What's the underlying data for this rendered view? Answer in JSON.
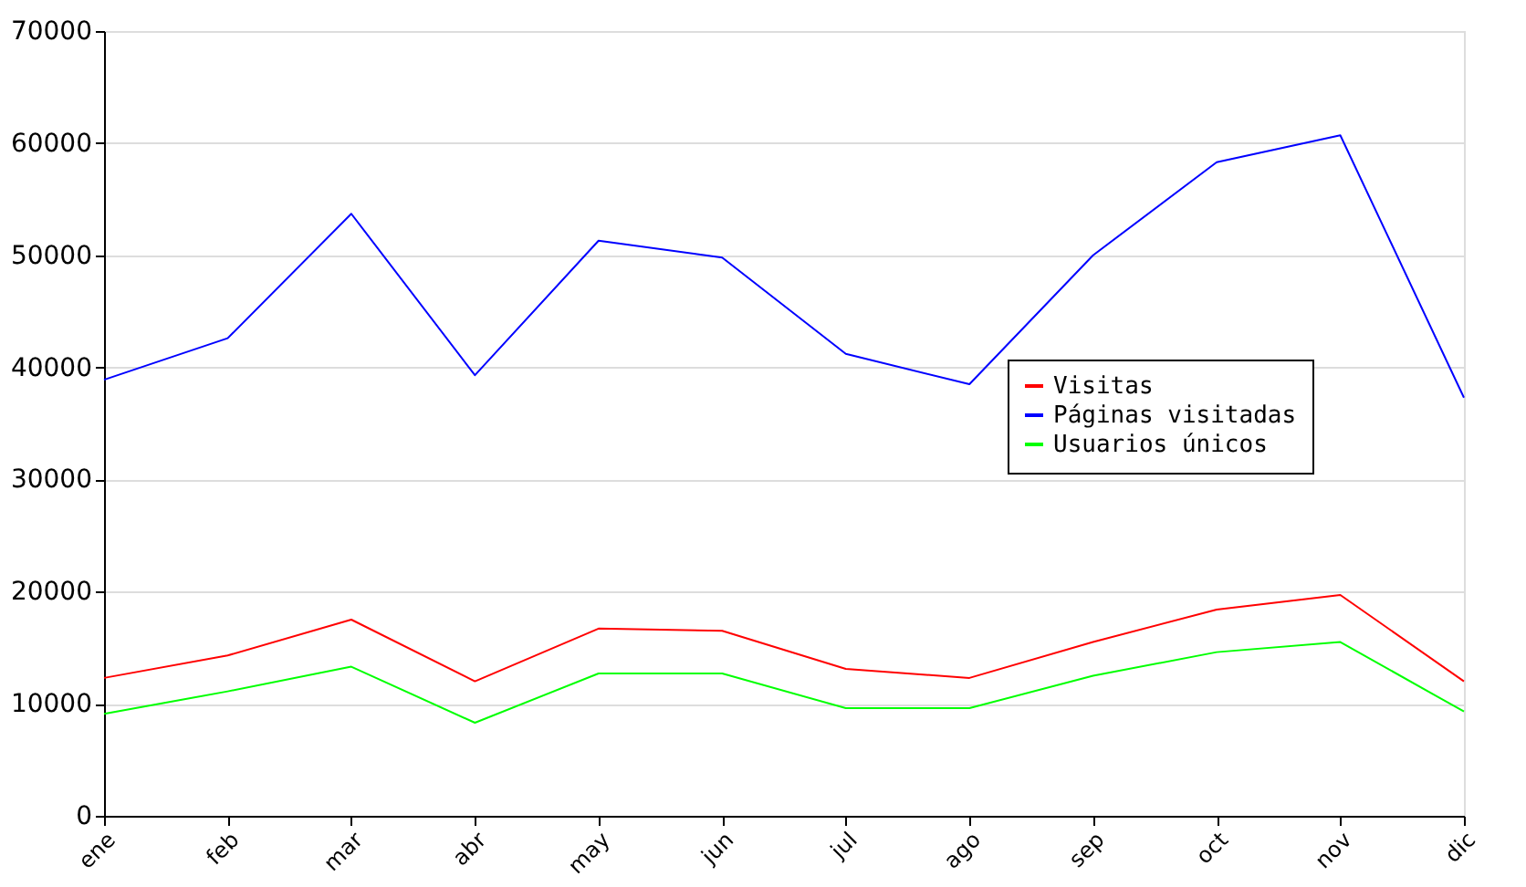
{
  "chart_data": {
    "type": "line",
    "categories": [
      "ene",
      "feb",
      "mar",
      "abr",
      "may",
      "jun",
      "jul",
      "ago",
      "sep",
      "oct",
      "nov",
      "dic"
    ],
    "series": [
      {
        "name": "Visitas",
        "color": "#ff0000",
        "values": [
          12300,
          14300,
          17500,
          12000,
          16700,
          16500,
          13100,
          12300,
          15500,
          18400,
          19700,
          12000
        ]
      },
      {
        "name": "Páginas visitadas",
        "color": "#0000ff",
        "values": [
          38900,
          42600,
          53700,
          39300,
          51300,
          49800,
          41200,
          38500,
          50000,
          58300,
          60700,
          37300
        ]
      },
      {
        "name": "Usuarios únicos",
        "color": "#00ff00",
        "values": [
          9100,
          11100,
          13300,
          8300,
          12700,
          12700,
          9600,
          9600,
          12500,
          14600,
          15500,
          9300
        ]
      }
    ],
    "ylim": [
      0,
      70000
    ],
    "yticks": [
      0,
      10000,
      20000,
      30000,
      40000,
      50000,
      60000,
      70000
    ],
    "grid": "y",
    "legend": "right"
  }
}
